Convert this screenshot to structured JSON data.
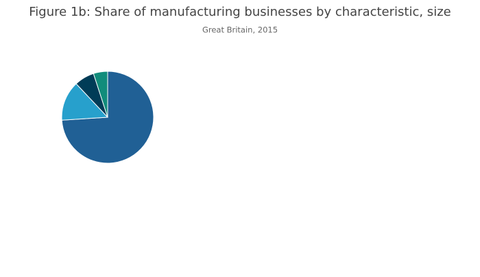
{
  "chart_data": {
    "type": "pie",
    "title": "Figure 1b: Share of manufacturing businesses by characteristic, size",
    "subtitle": "Great Britain, 2015",
    "values": [
      74,
      14,
      7,
      5
    ],
    "colors": [
      "#206095",
      "#27a0cc",
      "#003c57",
      "#118c7b"
    ]
  }
}
